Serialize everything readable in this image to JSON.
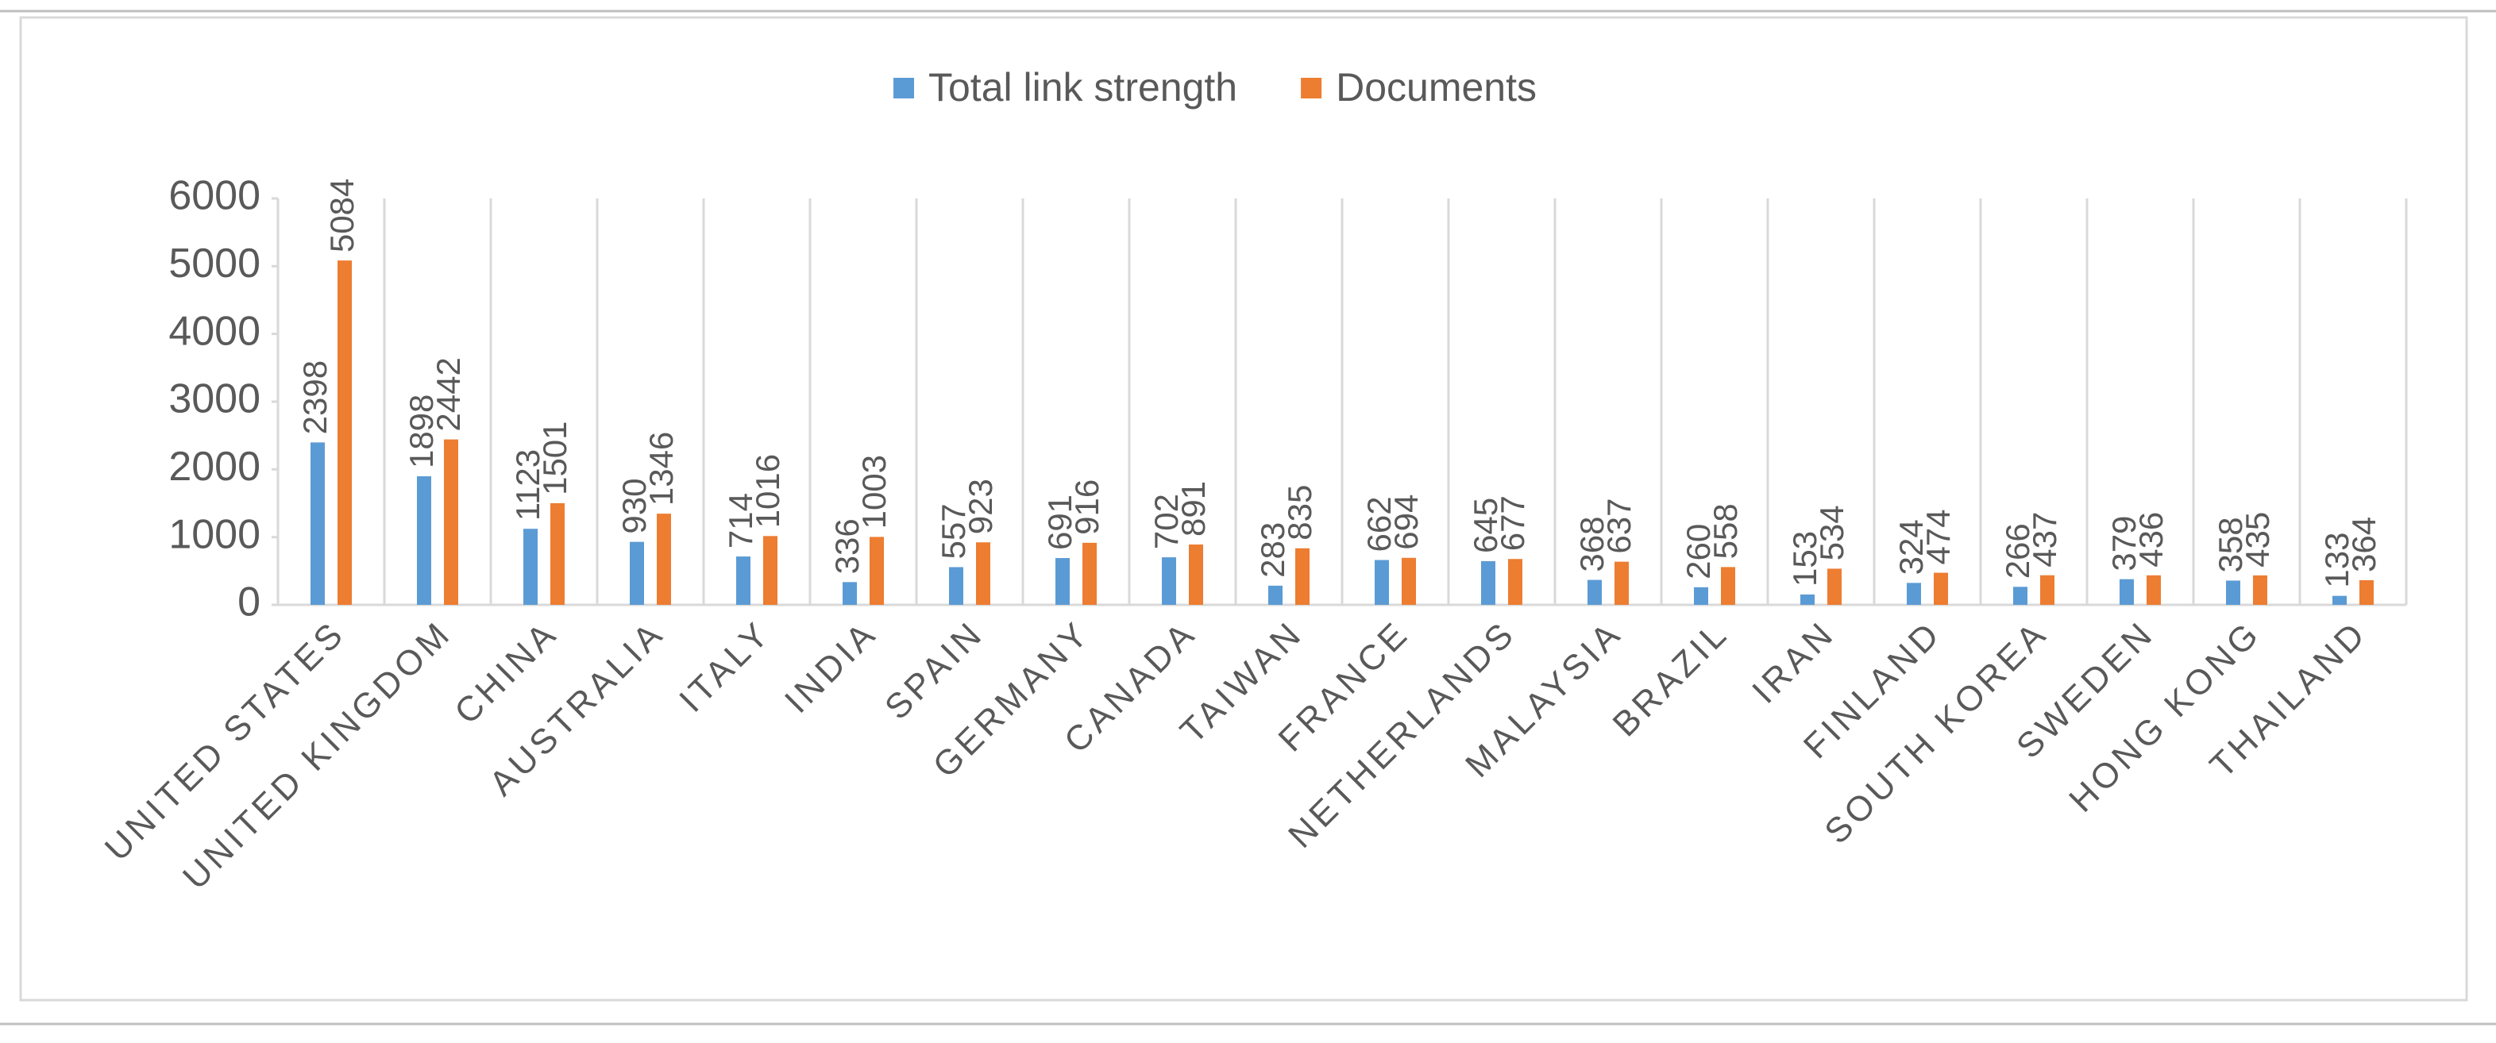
{
  "chart_data": {
    "type": "bar",
    "categories": [
      "UNITED STATES",
      "UNITED KINGDOM",
      "CHINA",
      "AUSTRALIA",
      "ITALY",
      "INDIA",
      "SPAIN",
      "GERMANY",
      "CANADA",
      "TAIWAN",
      "FRANCE",
      "NETHERLANDS",
      "MALAYSIA",
      "BRAZIL",
      "IRAN",
      "FINLAND",
      "SOUTH KOREA",
      "SWEDEN",
      "HONG KONG",
      "THAILAND"
    ],
    "series": [
      {
        "name": "Total link strength",
        "color": "#5b9bd5",
        "values": [
          2398,
          1898,
          1123,
          930,
          714,
          336,
          557,
          691,
          702,
          283,
          662,
          645,
          368,
          260,
          153,
          324,
          266,
          379,
          358,
          133
        ]
      },
      {
        "name": "Documents",
        "color": "#ed7d31",
        "values": [
          5084,
          2442,
          1501,
          1346,
          1016,
          1003,
          923,
          916,
          891,
          835,
          694,
          677,
          637,
          558,
          534,
          474,
          437,
          436,
          435,
          364
        ]
      }
    ],
    "ylim": [
      0,
      6000
    ],
    "yticks": [
      0,
      1000,
      2000,
      3000,
      4000,
      5000,
      6000
    ],
    "legend": "top"
  }
}
